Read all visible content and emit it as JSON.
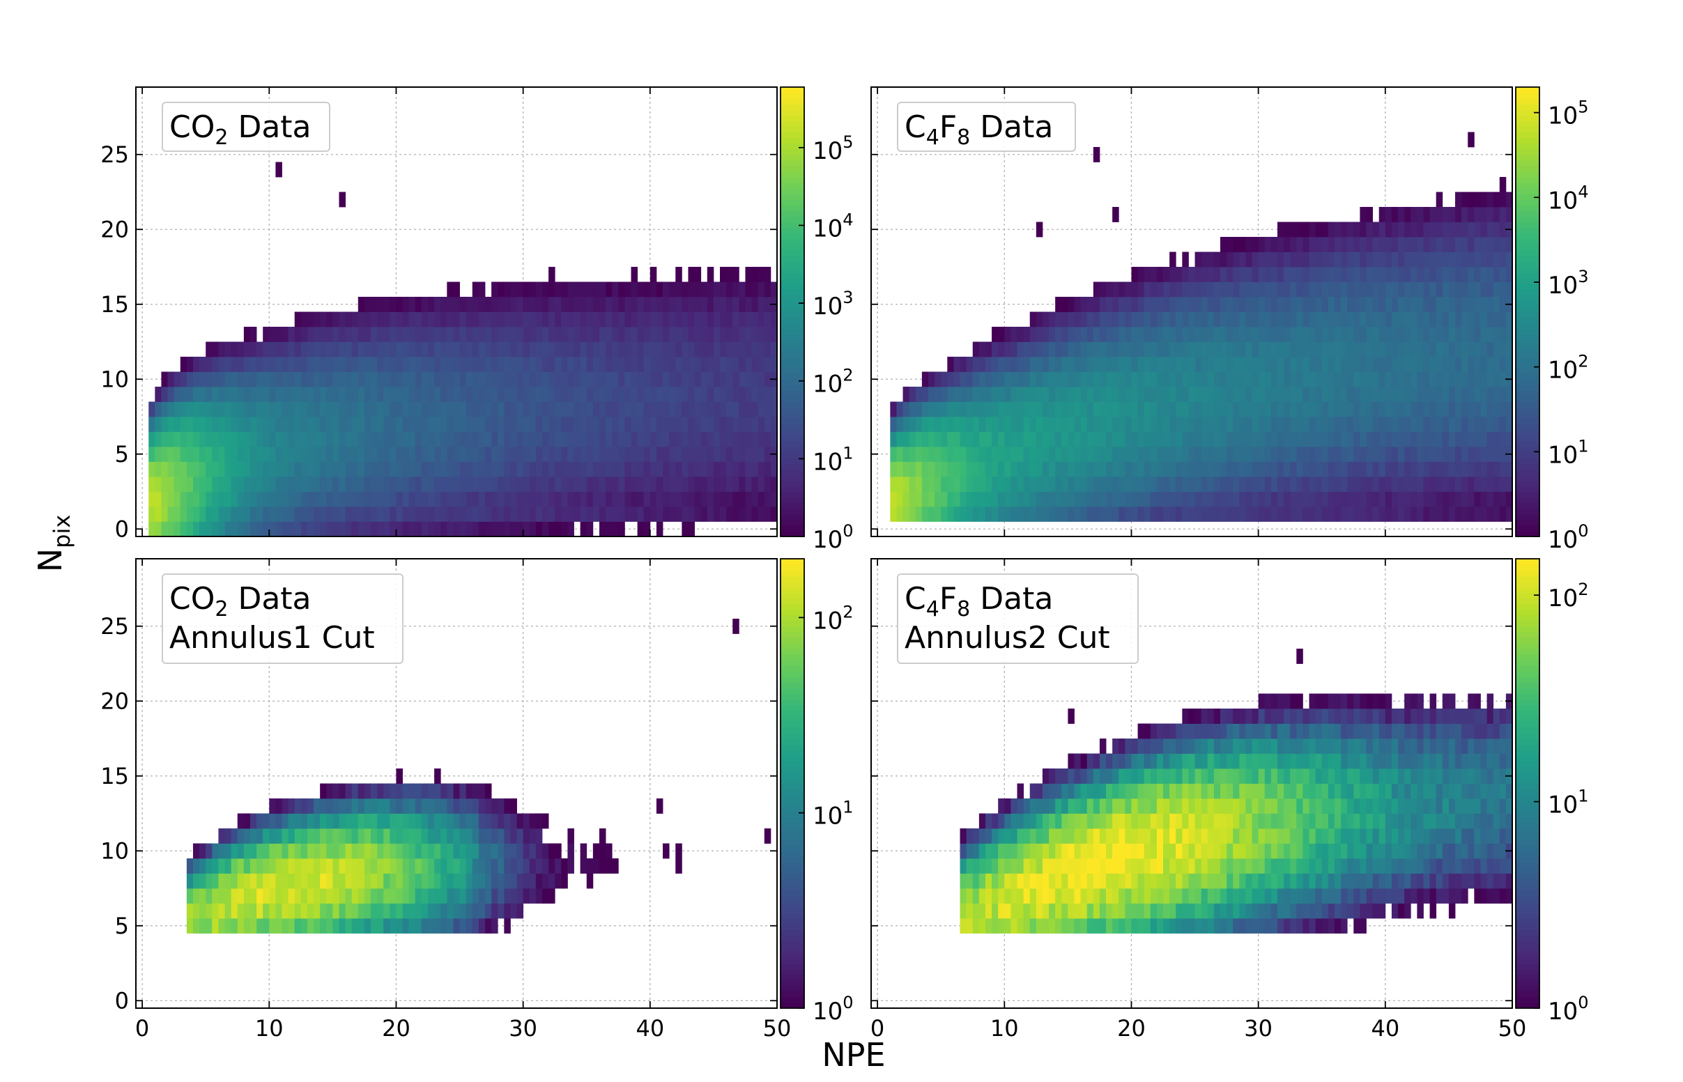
{
  "figure": {
    "xlabel": "NPE",
    "ylabel_main": "N",
    "ylabel_sub": "pix",
    "colormap": [
      "#440154",
      "#482878",
      "#3e4989",
      "#31688e",
      "#26828e",
      "#1f9e89",
      "#35b779",
      "#6ece58",
      "#b5de2b",
      "#fde725"
    ],
    "grid_color": "#b0b0b0",
    "frame_color": "#000000"
  },
  "chart_data": [
    {
      "type": "heatmap",
      "panel": "top-left",
      "legend_line1": {
        "base": "CO",
        "sub": "2",
        "rest": " Data"
      },
      "legend_line2": "",
      "xlim": [
        -0.5,
        50
      ],
      "ylim": [
        -0.5,
        29.5
      ],
      "xticks": [
        0,
        10,
        20,
        30,
        40,
        50
      ],
      "xtick_labels": [
        "",
        "",
        "",
        "",
        "",
        ""
      ],
      "yticks": [
        0,
        5,
        10,
        15,
        20,
        25
      ],
      "ytick_labels": [
        "0",
        "5",
        "10",
        "15",
        "20",
        "25"
      ],
      "bin_width": 0.5,
      "bin_height": 1,
      "colorbar": {
        "scale": "log",
        "min": 1,
        "max": 600000,
        "ticks": [
          {
            "value": 1,
            "label": "10",
            "exp": "0"
          },
          {
            "value": 10,
            "label": "10",
            "exp": "1"
          },
          {
            "value": 100,
            "label": "10",
            "exp": "2"
          },
          {
            "value": 1000,
            "label": "10",
            "exp": "3"
          },
          {
            "value": 10000,
            "label": "10",
            "exp": "4"
          },
          {
            "value": 100000,
            "label": "10",
            "exp": "5"
          }
        ]
      },
      "model": {
        "kind": "co2",
        "peak_npe": 0.6,
        "peak_npix": 1,
        "peak_count": 300000,
        "x_start": 0.5,
        "min_npix": 0,
        "max_npix": 17,
        "spread": 0.34
      }
    },
    {
      "type": "heatmap",
      "panel": "top-right",
      "legend_line1": {
        "base": "C",
        "sub": "4",
        "mid": "F",
        "sub2": "8",
        "rest": " Data"
      },
      "legend_line2": "",
      "xlim": [
        -0.5,
        50
      ],
      "ylim": [
        -0.5,
        29.5
      ],
      "xticks": [
        0,
        10,
        20,
        30,
        40,
        50
      ],
      "xtick_labels": [
        "",
        "",
        "",
        "",
        "",
        ""
      ],
      "yticks": [
        0,
        5,
        10,
        15,
        20,
        25
      ],
      "ytick_labels": [
        "",
        "",
        "",
        "",
        "",
        ""
      ],
      "bin_width": 0.5,
      "bin_height": 1,
      "colorbar": {
        "scale": "log",
        "min": 1,
        "max": 200000,
        "ticks": [
          {
            "value": 1,
            "label": "10",
            "exp": "0"
          },
          {
            "value": 10,
            "label": "10",
            "exp": "1"
          },
          {
            "value": 100,
            "label": "10",
            "exp": "2"
          },
          {
            "value": 1000,
            "label": "10",
            "exp": "3"
          },
          {
            "value": 10000,
            "label": "10",
            "exp": "4"
          },
          {
            "value": 100000,
            "label": "10",
            "exp": "5"
          }
        ]
      },
      "model": {
        "kind": "c4f8",
        "peak_npe": 1.0,
        "peak_npix": 1,
        "peak_count": 150000,
        "x_start": 1.0,
        "min_npix": 1,
        "max_npix": 28,
        "spread": 0.3
      }
    },
    {
      "type": "heatmap",
      "panel": "bottom-left",
      "legend_line1": {
        "base": "CO",
        "sub": "2",
        "rest": " Data"
      },
      "legend_line2": "Annulus1 Cut",
      "xlim": [
        -0.5,
        50
      ],
      "ylim": [
        -0.5,
        29.5
      ],
      "xticks": [
        0,
        10,
        20,
        30,
        40,
        50
      ],
      "xtick_labels": [
        "0",
        "10",
        "20",
        "30",
        "40",
        "50"
      ],
      "yticks": [
        0,
        5,
        10,
        15,
        20,
        25
      ],
      "ytick_labels": [
        "0",
        "5",
        "10",
        "15",
        "20",
        "25"
      ],
      "bin_width": 0.5,
      "bin_height": 1,
      "colorbar": {
        "scale": "log",
        "min": 1,
        "max": 200,
        "ticks": [
          {
            "value": 1,
            "label": "10",
            "exp": "0"
          },
          {
            "value": 10,
            "label": "10",
            "exp": "1"
          },
          {
            "value": 100,
            "label": "10",
            "exp": "2"
          }
        ]
      },
      "model": {
        "kind": "co2cut",
        "peak_npe": 11,
        "peak_npix": 7,
        "peak_count": 150,
        "x_start": 3.5,
        "min_npix": 5,
        "max_npix": 17,
        "spread": 0.28
      }
    },
    {
      "type": "heatmap",
      "panel": "bottom-right",
      "legend_line1": {
        "base": "C",
        "sub": "4",
        "mid": "F",
        "sub2": "8",
        "rest": " Data"
      },
      "legend_line2": "Annulus2 Cut",
      "xlim": [
        -0.5,
        50
      ],
      "ylim": [
        -0.5,
        29.5
      ],
      "xticks": [
        0,
        10,
        20,
        30,
        40,
        50
      ],
      "xtick_labels": [
        "0",
        "10",
        "20",
        "30",
        "40",
        "50"
      ],
      "yticks": [
        0,
        5,
        10,
        15,
        20,
        25
      ],
      "ytick_labels": [
        "",
        "",
        "",
        "",
        "",
        ""
      ],
      "bin_width": 0.5,
      "bin_height": 1,
      "colorbar": {
        "scale": "log",
        "min": 1,
        "max": 150,
        "ticks": [
          {
            "value": 1,
            "label": "10",
            "exp": "0"
          },
          {
            "value": 10,
            "label": "10",
            "exp": "1"
          },
          {
            "value": 100,
            "label": "10",
            "exp": "2"
          }
        ]
      },
      "model": {
        "kind": "c4f8cut",
        "peak_npe": 18,
        "peak_npix": 10,
        "peak_count": 130,
        "x_start": 6.5,
        "min_npix": 5,
        "max_npix": 24,
        "spread": 0.27
      }
    }
  ]
}
